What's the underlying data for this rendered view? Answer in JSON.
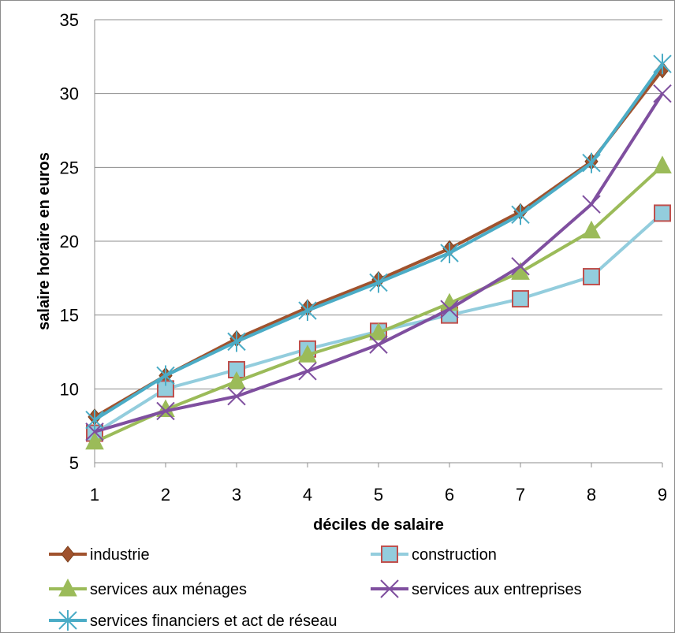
{
  "chart_data": {
    "type": "line",
    "title": "",
    "xlabel": "déciles de salaire",
    "ylabel": "salaire horaire en euros",
    "x": [
      1,
      2,
      3,
      4,
      5,
      6,
      7,
      8,
      9
    ],
    "ylim": [
      5,
      35
    ],
    "yticks": [
      5,
      10,
      15,
      20,
      25,
      30,
      35
    ],
    "grid": "horizontal",
    "legend_position": "bottom",
    "series": [
      {
        "name": "industrie",
        "color": "#a0522d",
        "marker": "diamond",
        "values": [
          8.1,
          10.9,
          13.4,
          15.5,
          17.4,
          19.5,
          22.0,
          25.4,
          31.6
        ]
      },
      {
        "name": "construction",
        "color": "#93cddd",
        "marker": "square",
        "values": [
          7.0,
          10.0,
          11.3,
          12.7,
          13.9,
          15.0,
          16.1,
          17.6,
          21.9
        ]
      },
      {
        "name": "services aux ménages",
        "color": "#9bbb59",
        "marker": "triangle",
        "values": [
          6.4,
          8.6,
          10.5,
          12.3,
          13.8,
          15.8,
          17.9,
          20.7,
          25.1
        ]
      },
      {
        "name": "services aux entreprises",
        "color": "#7f4f9f",
        "marker": "x",
        "values": [
          7.1,
          8.5,
          9.5,
          11.2,
          13.0,
          15.4,
          18.3,
          22.5,
          30.0
        ]
      },
      {
        "name": "services financiers et act de réseau",
        "color": "#4bacc6",
        "marker": "star",
        "values": [
          7.9,
          10.9,
          13.2,
          15.3,
          17.2,
          19.2,
          21.8,
          25.3,
          32.0
        ]
      }
    ]
  }
}
